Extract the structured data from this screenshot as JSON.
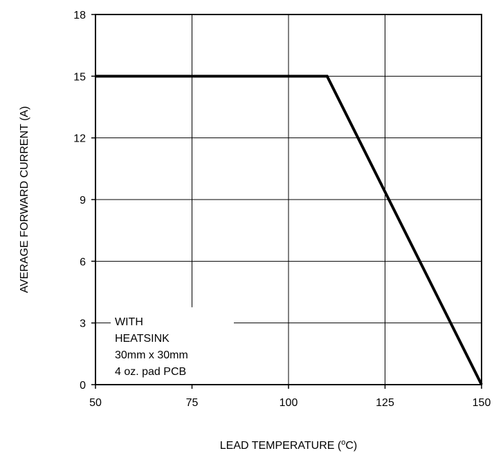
{
  "chart_data": {
    "type": "line",
    "xlabel": "LEAD TEMPERATURE (",
    "xlabel_sup": "o",
    "xlabel_end": "C)",
    "ylabel": "AVERAGE FORWARD CURRENT (A)",
    "xlim": [
      50,
      150
    ],
    "ylim": [
      0,
      18
    ],
    "x_ticks": [
      50,
      75,
      100,
      125,
      150
    ],
    "y_ticks": [
      0,
      3,
      6,
      9,
      12,
      15,
      18
    ],
    "grid": true,
    "series": [
      {
        "x": [
          50,
          110,
          150
        ],
        "y": [
          15,
          15,
          0
        ],
        "color": "#000000"
      }
    ],
    "annotation": [
      "WITH",
      "HEATSINK",
      "30mm x 30mm",
      "4 oz. pad PCB"
    ]
  }
}
